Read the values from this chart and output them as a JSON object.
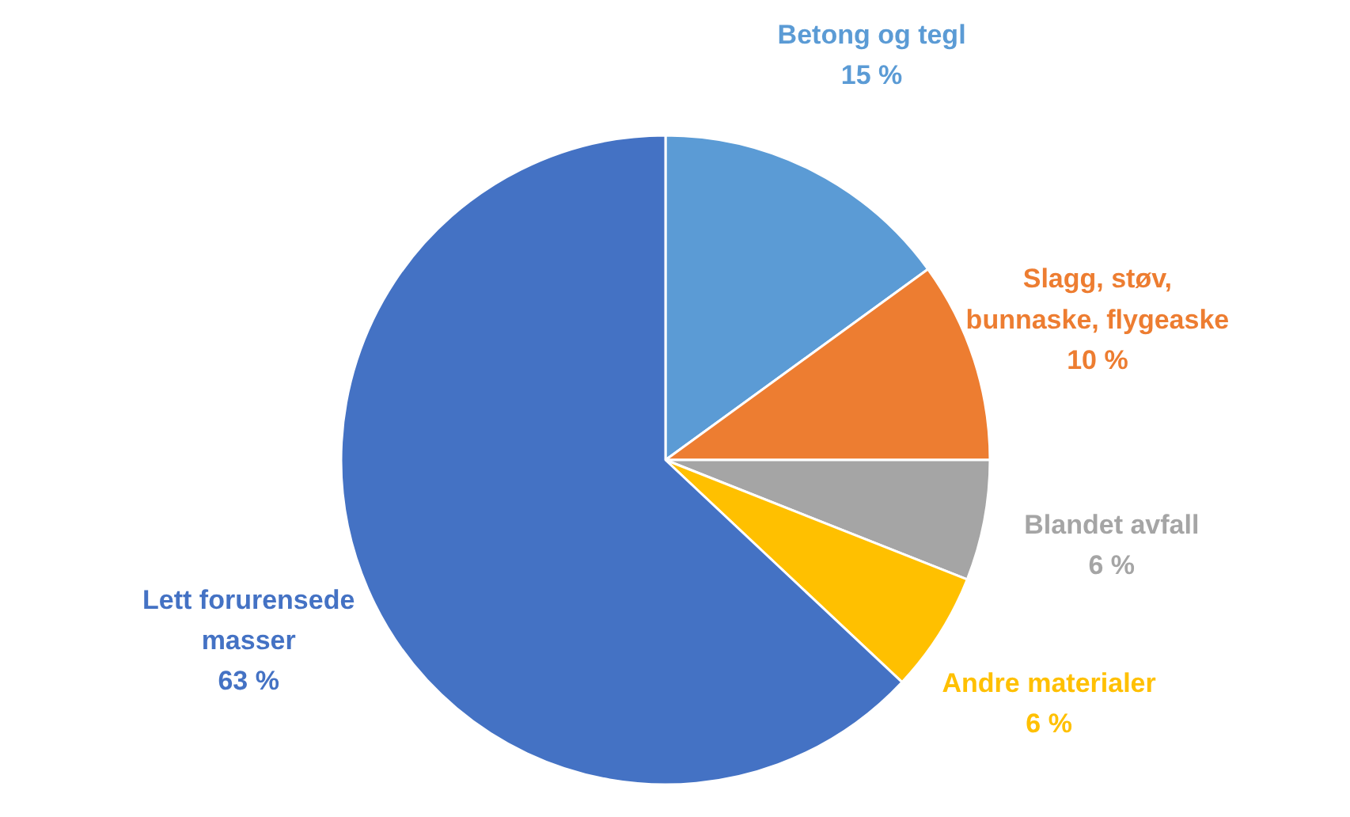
{
  "chart_data": {
    "type": "pie",
    "categories": [
      "Betong og tegl",
      "Slagg, støv, bunnaske, flygeaske",
      "Blandet avfall",
      "Andre materialer",
      "Lett forurensede masser"
    ],
    "values": [
      15,
      10,
      6,
      6,
      63
    ],
    "value_labels": [
      "15 %",
      "10 %",
      "6 %",
      "6 %",
      "63 %"
    ],
    "colors": [
      "#5b9bd5",
      "#ed7d31",
      "#a5a5a5",
      "#ffc000",
      "#4472c4"
    ]
  }
}
